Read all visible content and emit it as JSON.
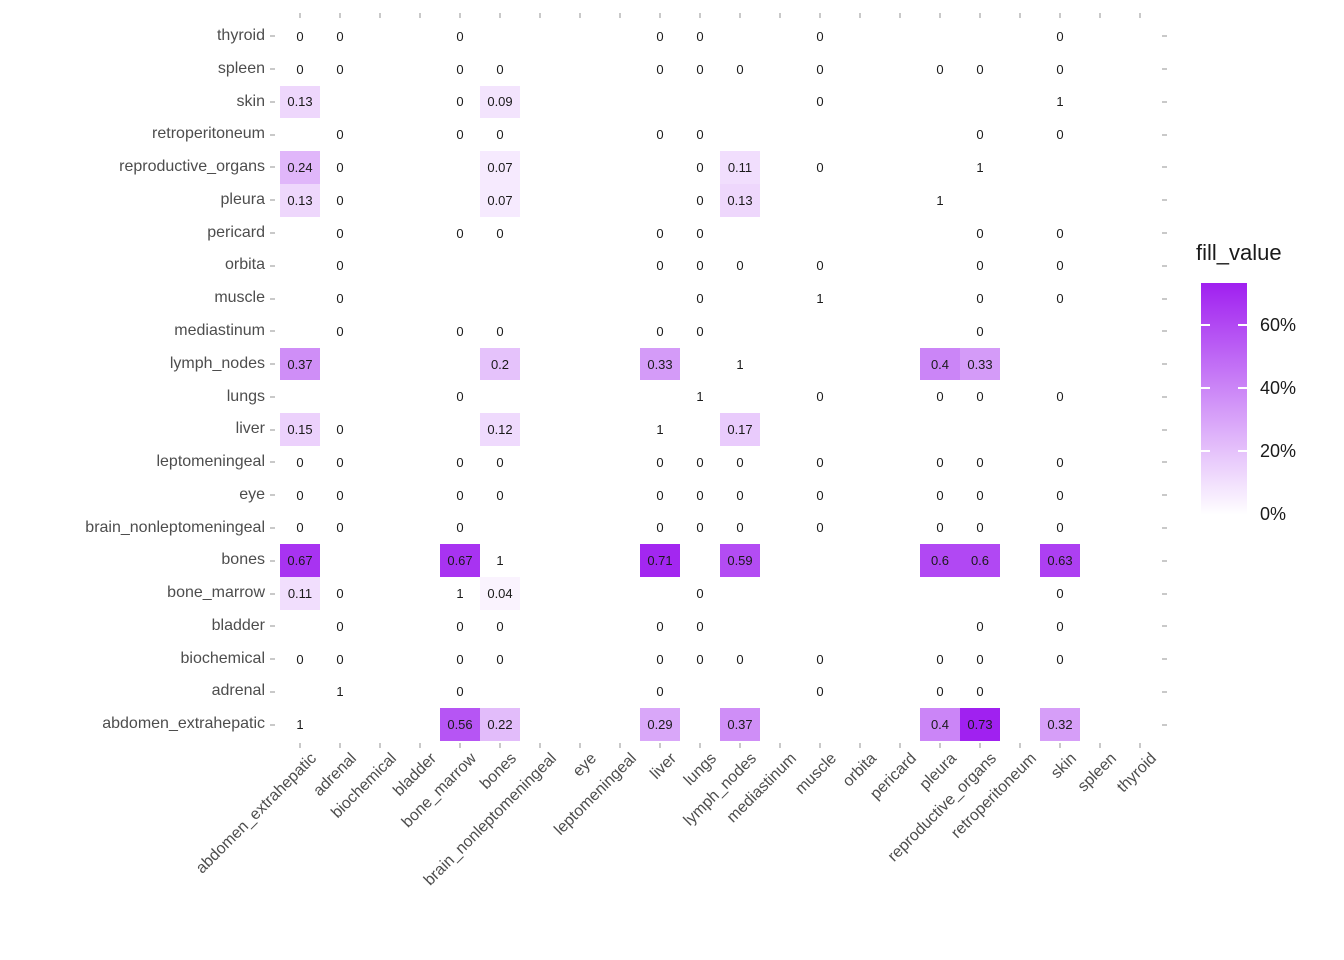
{
  "chart_data": {
    "type": "heatmap",
    "title": "",
    "x_categories": [
      "abdomen_extrahepatic",
      "adrenal",
      "biochemical",
      "bladder",
      "bone_marrow",
      "bones",
      "brain_nonleptomeningeal",
      "eye",
      "leptomeningeal",
      "liver",
      "lungs",
      "lymph_nodes",
      "mediastinum",
      "muscle",
      "orbita",
      "pericard",
      "pleura",
      "reproductive_organs",
      "retroperitoneum",
      "skin",
      "spleen",
      "thyroid"
    ],
    "y_categories_top_to_bottom": [
      "thyroid",
      "spleen",
      "skin",
      "retroperitoneum",
      "reproductive_organs",
      "pleura",
      "pericard",
      "orbita",
      "muscle",
      "mediastinum",
      "lymph_nodes",
      "lungs",
      "liver",
      "leptomeningeal",
      "eye",
      "brain_nonleptomeningeal",
      "bones",
      "bone_marrow",
      "bladder",
      "biochemical",
      "adrenal",
      "abdomen_extrahepatic"
    ],
    "cells": {
      "thyroid": {
        "abdomen_extrahepatic": "0",
        "adrenal": "0",
        "bone_marrow": "0",
        "liver": "0",
        "lungs": "0",
        "muscle": "0",
        "skin": "0"
      },
      "spleen": {
        "abdomen_extrahepatic": "0",
        "adrenal": "0",
        "bone_marrow": "0",
        "bones": "0",
        "liver": "0",
        "lungs": "0",
        "lymph_nodes": "0",
        "muscle": "0",
        "pleura": "0",
        "reproductive_organs": "0",
        "skin": "0"
      },
      "skin": {
        "abdomen_extrahepatic": "0.13",
        "bone_marrow": "0",
        "bones": "0.09",
        "muscle": "0",
        "skin": "1"
      },
      "retroperitoneum": {
        "adrenal": "0",
        "bone_marrow": "0",
        "bones": "0",
        "liver": "0",
        "lungs": "0",
        "reproductive_organs": "0",
        "skin": "0"
      },
      "reproductive_organs": {
        "abdomen_extrahepatic": "0.24",
        "adrenal": "0",
        "bones": "0.07",
        "lungs": "0",
        "lymph_nodes": "0.11",
        "muscle": "0",
        "reproductive_organs": "1"
      },
      "pleura": {
        "abdomen_extrahepatic": "0.13",
        "adrenal": "0",
        "bones": "0.07",
        "lungs": "0",
        "lymph_nodes": "0.13",
        "pleura": "1"
      },
      "pericard": {
        "adrenal": "0",
        "bone_marrow": "0",
        "bones": "0",
        "liver": "0",
        "lungs": "0",
        "reproductive_organs": "0",
        "skin": "0"
      },
      "orbita": {
        "adrenal": "0",
        "liver": "0",
        "lungs": "0",
        "lymph_nodes": "0",
        "muscle": "0",
        "reproductive_organs": "0",
        "skin": "0"
      },
      "muscle": {
        "adrenal": "0",
        "lungs": "0",
        "muscle": "1",
        "reproductive_organs": "0",
        "skin": "0"
      },
      "mediastinum": {
        "adrenal": "0",
        "bone_marrow": "0",
        "bones": "0",
        "liver": "0",
        "lungs": "0",
        "reproductive_organs": "0"
      },
      "lymph_nodes": {
        "abdomen_extrahepatic": "0.37",
        "bones": "0.2",
        "liver": "0.33",
        "lymph_nodes": "1",
        "pleura": "0.4",
        "reproductive_organs": "0.33"
      },
      "lungs": {
        "bone_marrow": "0",
        "lungs": "1",
        "muscle": "0",
        "pleura": "0",
        "reproductive_organs": "0",
        "skin": "0"
      },
      "liver": {
        "abdomen_extrahepatic": "0.15",
        "adrenal": "0",
        "bones": "0.12",
        "liver": "1",
        "lymph_nodes": "0.17"
      },
      "leptomeningeal": {
        "abdomen_extrahepatic": "0",
        "adrenal": "0",
        "bone_marrow": "0",
        "bones": "0",
        "liver": "0",
        "lungs": "0",
        "lymph_nodes": "0",
        "muscle": "0",
        "pleura": "0",
        "reproductive_organs": "0",
        "skin": "0"
      },
      "eye": {
        "abdomen_extrahepatic": "0",
        "adrenal": "0",
        "bone_marrow": "0",
        "bones": "0",
        "liver": "0",
        "lungs": "0",
        "lymph_nodes": "0",
        "muscle": "0",
        "pleura": "0",
        "reproductive_organs": "0",
        "skin": "0"
      },
      "brain_nonleptomeningeal": {
        "abdomen_extrahepatic": "0",
        "adrenal": "0",
        "bone_marrow": "0",
        "liver": "0",
        "lungs": "0",
        "lymph_nodes": "0",
        "muscle": "0",
        "pleura": "0",
        "reproductive_organs": "0",
        "skin": "0"
      },
      "bones": {
        "abdomen_extrahepatic": "0.67",
        "bone_marrow": "0.67",
        "bones": "1",
        "liver": "0.71",
        "lymph_nodes": "0.59",
        "pleura": "0.6",
        "reproductive_organs": "0.6",
        "skin": "0.63"
      },
      "bone_marrow": {
        "abdomen_extrahepatic": "0.11",
        "adrenal": "0",
        "bone_marrow": "1",
        "bones": "0.04",
        "lungs": "0",
        "skin": "0"
      },
      "bladder": {
        "adrenal": "0",
        "bone_marrow": "0",
        "bones": "0",
        "liver": "0",
        "lungs": "0",
        "reproductive_organs": "0",
        "skin": "0"
      },
      "biochemical": {
        "abdomen_extrahepatic": "0",
        "adrenal": "0",
        "bone_marrow": "0",
        "bones": "0",
        "liver": "0",
        "lungs": "0",
        "lymph_nodes": "0",
        "muscle": "0",
        "pleura": "0",
        "reproductive_organs": "0",
        "skin": "0"
      },
      "adrenal": {
        "adrenal": "1",
        "bone_marrow": "0",
        "liver": "0",
        "muscle": "0",
        "pleura": "0",
        "reproductive_organs": "0"
      },
      "abdomen_extrahepatic": {
        "abdomen_extrahepatic": "1",
        "bone_marrow": "0.56",
        "bones": "0.22",
        "liver": "0.29",
        "lymph_nodes": "0.37",
        "pleura": "0.4",
        "reproductive_organs": "0.73",
        "skin": "0.32"
      }
    },
    "fill": {
      "low": "#FFFFFF",
      "high": "#A020F0",
      "na": "#FFFFFF",
      "scale_max": 0.733,
      "oob_rendered_as_na": true
    },
    "legend": {
      "title": "fill_value",
      "tick_labels": [
        "60%",
        "40%",
        "20%",
        "0%"
      ],
      "position": "right"
    },
    "layout": {
      "grid": "off",
      "x_label_angle": 45,
      "axes_have_titles": false
    }
  },
  "colors": {
    "accent_purple": "#A020F0",
    "background": "#FFFFFF",
    "axis_text": "#4D4D4D",
    "cell_text": "#1A1A1A",
    "tick_mark": "#C9C9C9",
    "legend_text": "#1A1A1A"
  }
}
